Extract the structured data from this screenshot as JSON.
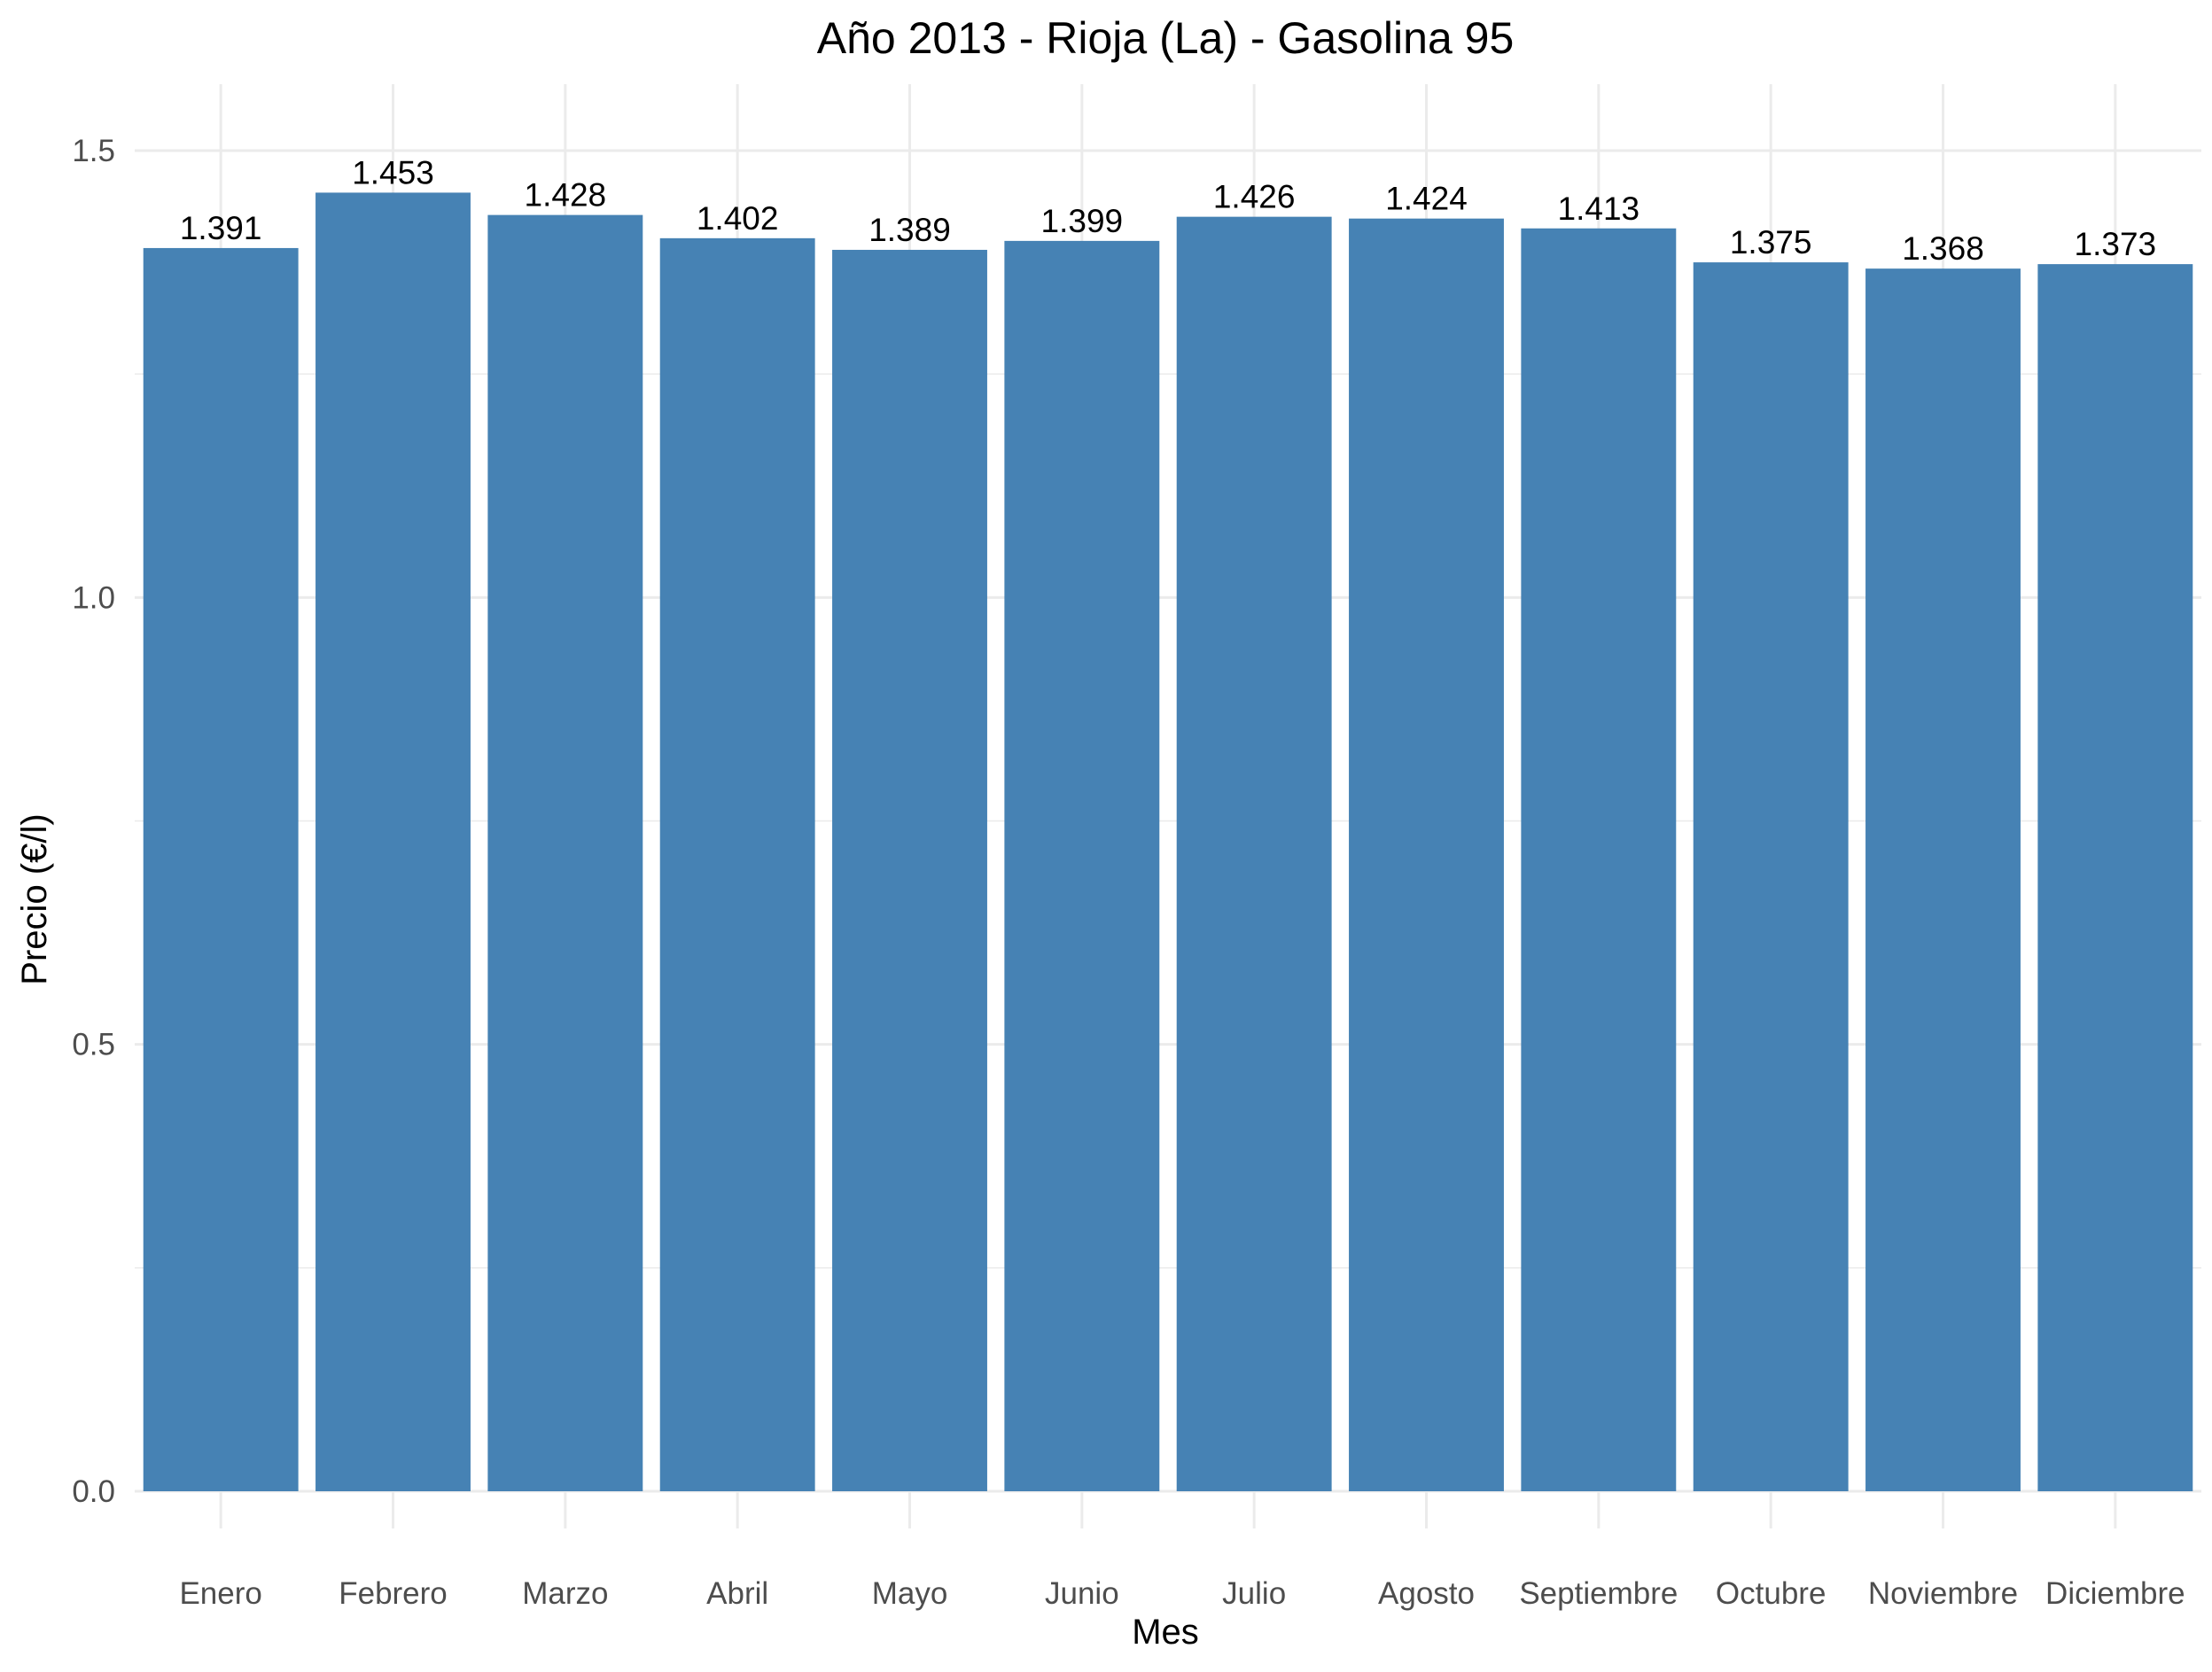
{
  "chart_data": {
    "type": "bar",
    "title": "Año 2013 - Rioja (La) - Gasolina 95",
    "xlabel": "Mes",
    "ylabel": "Precio (€/l)",
    "categories": [
      "Enero",
      "Febrero",
      "Marzo",
      "Abril",
      "Mayo",
      "Junio",
      "Julio",
      "Agosto",
      "Septiembre",
      "Octubre",
      "Noviembre",
      "Diciembre"
    ],
    "values": [
      1.391,
      1.453,
      1.428,
      1.402,
      1.389,
      1.399,
      1.426,
      1.424,
      1.413,
      1.375,
      1.368,
      1.373
    ],
    "data_labels": [
      "1.391",
      "1.453",
      "1.428",
      "1.402",
      "1.389",
      "1.399",
      "1.426",
      "1.424",
      "1.413",
      "1.375",
      "1.368",
      "1.373"
    ],
    "ylim": [
      0,
      1.58
    ],
    "yticks": [
      0,
      0.5,
      1.0,
      1.5
    ],
    "ytick_labels": [
      "0.0",
      "0.5",
      "1.0",
      "1.5"
    ],
    "grid": true,
    "bar_color": "#4682b4"
  }
}
